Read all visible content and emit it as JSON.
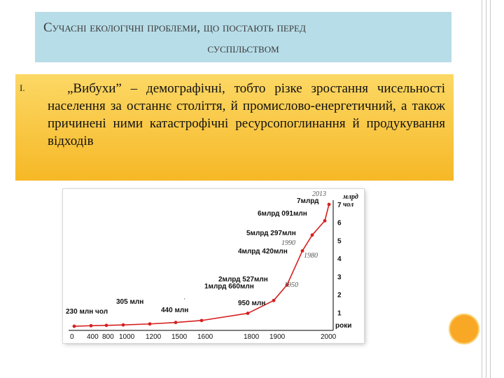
{
  "title": {
    "line1": "Сучасні екологічні проблеми, що постають перед",
    "line2": "суспільством"
  },
  "bullet": {
    "marker": "I.",
    "text": "„Вибухи” – демографічні, тобто різке зростання чисельності населення за останнє століття, й промислово-енергетичний, а також причинені ними катастрофічні ресурсопоглинання й продукування відходів"
  },
  "colors": {
    "title_bg": "#b7dde8",
    "bullet_bg": "#f6b826",
    "curve": "#d62020",
    "accent_circle": "#f9a826"
  },
  "chart_data": {
    "type": "line",
    "xlabel": "роки",
    "ylabel": "млрд чол",
    "x_ticks": [
      "0",
      "400",
      "800",
      "1000",
      "1200",
      "1500",
      "1600",
      "1800",
      "1900",
      "2000"
    ],
    "y_ticks": [
      "1",
      "2",
      "3",
      "4",
      "5",
      "6",
      "7"
    ],
    "ylim": [
      0,
      7
    ],
    "points": [
      {
        "x": "0",
        "y": 0.23
      },
      {
        "x": "400",
        "y": 0.26
      },
      {
        "x": "800",
        "y": 0.28
      },
      {
        "x": "1000",
        "y": 0.305
      },
      {
        "x": "1200",
        "y": 0.36
      },
      {
        "x": "1500",
        "y": 0.44
      },
      {
        "x": "1600",
        "y": 0.55
      },
      {
        "x": "1800",
        "y": 0.95
      },
      {
        "x": "1900",
        "y": 1.66
      },
      {
        "x": "1950",
        "y": 2.527
      },
      {
        "x": "1980",
        "y": 4.42
      },
      {
        "x": "1990",
        "y": 5.297
      },
      {
        "x": "2000",
        "y": 6.091
      },
      {
        "x": "2013",
        "y": 7.0
      }
    ],
    "value_labels": [
      "230 млн чол",
      "305 млн",
      "440 млн",
      "950 млн",
      "1млрд 660млн",
      "2млрд 527млн",
      "4млрд 420млн",
      "5млрд 297млн",
      "6млрд 091млн",
      "7млрд"
    ],
    "year_labels": [
      "1950",
      "1980",
      "1990",
      "2013"
    ],
    "grid": false,
    "legend": "none"
  }
}
